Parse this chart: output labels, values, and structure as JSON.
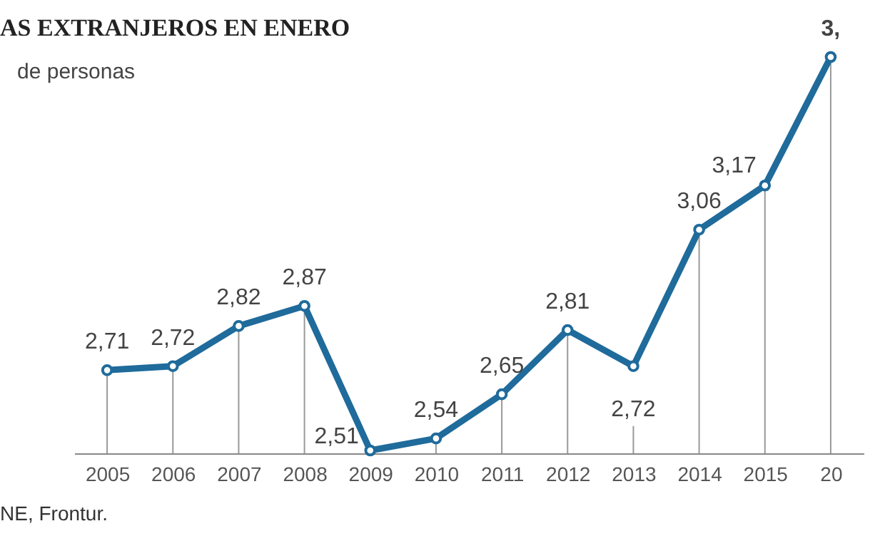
{
  "chart_data": {
    "type": "line",
    "title": "AS EXTRANJEROS EN ENERO",
    "subtitle": "de personas",
    "annotations": [
      "NE, Frontur."
    ],
    "categories": [
      "2005",
      "2006",
      "2007",
      "2008",
      "2009",
      "2010",
      "2011",
      "2012",
      "2013",
      "2014",
      "2015",
      "20"
    ],
    "series": [
      {
        "color": "#1f6b9b",
        "values": [
          2.71,
          2.72,
          2.82,
          2.87,
          2.51,
          2.54,
          2.65,
          2.81,
          2.72,
          3.06,
          3.17,
          3.49
        ],
        "value_labels": [
          "2,71",
          "2,72",
          "2,82",
          "2,87",
          "2,51",
          "2,54",
          "2,65",
          "2,81",
          "2,72",
          "3,06",
          "3,17",
          "3,"
        ]
      }
    ],
    "tick_labels": "x",
    "marker": "circle",
    "line_style": "solid",
    "grid": "x"
  }
}
